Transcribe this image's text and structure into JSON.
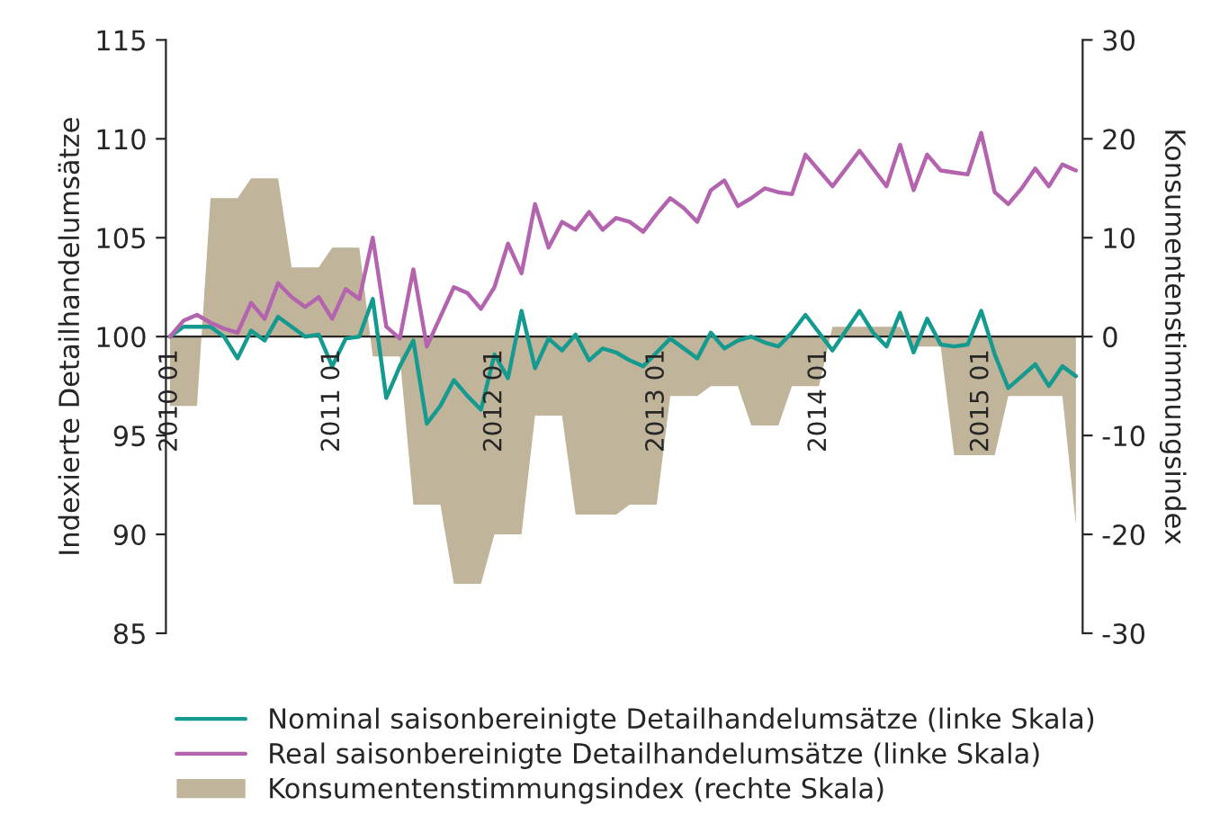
{
  "chart_data": {
    "type": "line",
    "ylabel": "Indexierte Detailhandelumsätze",
    "y2label": "Konsumentenstimmungsindex",
    "categories": [
      "2010 01",
      null,
      null,
      null,
      null,
      null,
      null,
      null,
      null,
      null,
      null,
      null,
      "2011 01",
      null,
      null,
      null,
      null,
      null,
      null,
      null,
      null,
      null,
      null,
      null,
      "2012 01",
      null,
      null,
      null,
      null,
      null,
      null,
      null,
      null,
      null,
      null,
      null,
      "2013 01",
      null,
      null,
      null,
      null,
      null,
      null,
      null,
      null,
      null,
      null,
      null,
      "2014 01",
      null,
      null,
      null,
      null,
      null,
      null,
      null,
      null,
      null,
      null,
      null,
      "2015 01",
      null,
      null,
      null,
      null,
      null,
      null,
      null
    ],
    "ylim": [
      85,
      115
    ],
    "yticks": [
      85,
      90,
      95,
      100,
      105,
      110,
      115
    ],
    "y2lim": [
      -30,
      30
    ],
    "y2ticks": [
      -30,
      -20,
      -10,
      0,
      10,
      20,
      30
    ],
    "legend": "bottom",
    "grid": false,
    "series": [
      {
        "name": "Konsumentenstimmungsindex (rechte Skala)",
        "type": "area",
        "axis": "y2",
        "color": "#c0b49a",
        "values": [
          -7,
          -7,
          -7,
          14,
          14,
          14,
          16,
          16,
          16,
          7,
          7,
          7,
          9,
          9,
          9,
          -2,
          -2,
          -2,
          -17,
          -17,
          -17,
          -25,
          -25,
          -25,
          -20,
          -20,
          -20,
          -8,
          -8,
          -8,
          -18,
          -18,
          -18,
          -18,
          -17,
          -17,
          -17,
          -6,
          -6,
          -6,
          -5,
          -5,
          -5,
          -9,
          -9,
          -9,
          -5,
          -5,
          -5,
          1,
          1,
          1,
          1,
          1,
          1,
          -1,
          -1,
          -1,
          -12,
          -12,
          -12,
          -12,
          -6,
          -6,
          -6,
          -6,
          -6,
          -19
        ]
      },
      {
        "name": "Nominal saisonbereinigte Detailhandelumsätze (linke Skala)",
        "color": "#149a8f",
        "values": [
          100,
          100.5,
          100.5,
          100.5,
          100,
          98.9,
          100.3,
          99.8,
          101,
          100.5,
          100,
          100.1,
          98.5,
          99.9,
          100,
          101.9,
          96.9,
          98.5,
          99.8,
          95.6,
          96.5,
          97.8,
          97,
          96.3,
          99.1,
          97.9,
          101.3,
          98.4,
          99.9,
          99.3,
          100.1,
          98.8,
          99.4,
          99.2,
          98.8,
          98.5,
          99.2,
          99.9,
          99.4,
          98.9,
          100.2,
          99.4,
          99.8,
          100,
          99.7,
          99.5,
          100.2,
          101.1,
          100.2,
          99.3,
          100.3,
          101.3,
          100.2,
          99.5,
          101.2,
          99.2,
          100.9,
          99.6,
          99.5,
          99.6,
          101.3,
          99.1,
          97.4,
          98,
          98.6,
          97.5,
          98.5,
          98
        ]
      },
      {
        "name": "Real saisonbereinigte Detailhandelumsätze (linke Skala)",
        "color": "#b464ae",
        "values": [
          100,
          100.8,
          101.1,
          100.7,
          100.4,
          100.2,
          101.7,
          100.9,
          102.7,
          102,
          101.5,
          102,
          100.9,
          102.4,
          101.9,
          105,
          100.5,
          99.9,
          103.4,
          99.5,
          101,
          102.5,
          102.2,
          101.4,
          102.5,
          104.7,
          103.2,
          106.7,
          104.5,
          105.8,
          105.4,
          106.3,
          105.4,
          106,
          105.8,
          105.3,
          106.2,
          107,
          106.5,
          105.8,
          107.4,
          107.9,
          106.6,
          107,
          107.5,
          107.3,
          107.2,
          109.2,
          108.4,
          107.6,
          108.5,
          109.4,
          108.5,
          107.6,
          109.7,
          107.4,
          109.2,
          108.4,
          108.3,
          108.2,
          110.3,
          107.3,
          106.7,
          107.5,
          108.5,
          107.6,
          108.7,
          108.4
        ]
      }
    ]
  }
}
